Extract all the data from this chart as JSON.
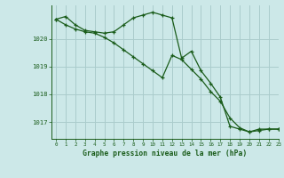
{
  "title": "Graphe pression niveau de la mer (hPa)",
  "bg_color": "#cce8e8",
  "grid_color": "#aacccc",
  "line_color": "#1a5c1a",
  "xlim": [
    -0.5,
    23
  ],
  "ylim": [
    1016.4,
    1021.2
  ],
  "yticks": [
    1017,
    1018,
    1019,
    1020
  ],
  "xticks": [
    0,
    1,
    2,
    3,
    4,
    5,
    6,
    7,
    8,
    9,
    10,
    11,
    12,
    13,
    14,
    15,
    16,
    17,
    18,
    19,
    20,
    21,
    22,
    23
  ],
  "series1": [
    1020.7,
    1020.8,
    1020.5,
    1020.3,
    1020.25,
    1020.2,
    1020.25,
    1020.5,
    1020.75,
    1020.85,
    1020.95,
    1020.85,
    1020.75,
    1019.3,
    1019.55,
    1018.85,
    1018.4,
    1017.9,
    1016.85,
    1016.75,
    1016.65,
    1016.7,
    1016.75,
    1016.75
  ],
  "series2": [
    1020.7,
    1020.5,
    1020.35,
    1020.25,
    1020.2,
    1020.05,
    1019.85,
    1019.6,
    1019.35,
    1019.1,
    1018.85,
    1018.6,
    1019.4,
    1019.25,
    1018.9,
    1018.55,
    1018.1,
    1017.75,
    1017.15,
    1016.8,
    1016.65,
    1016.75,
    1016.75,
    1016.75
  ]
}
